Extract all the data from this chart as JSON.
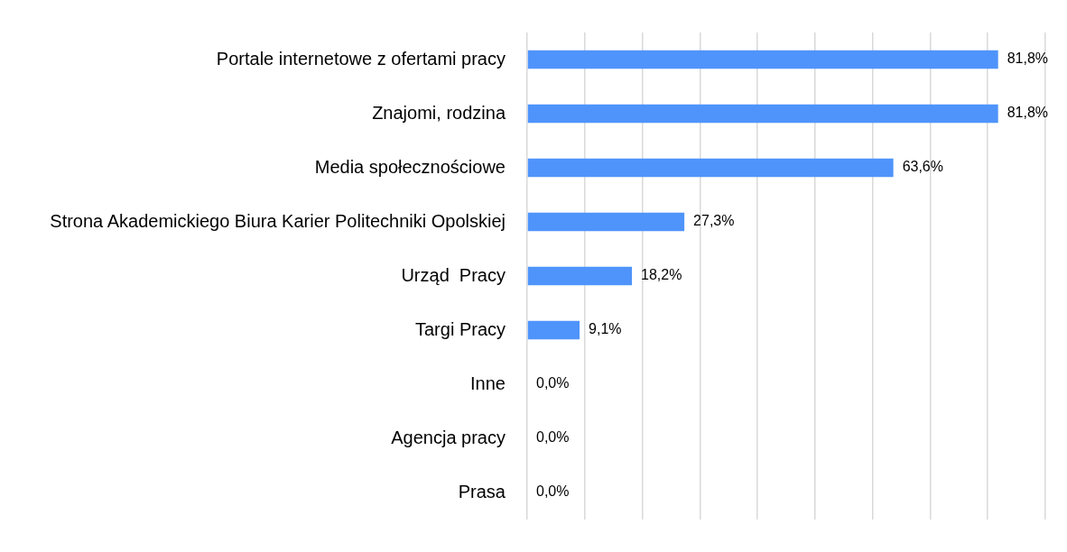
{
  "chart_data": {
    "type": "bar",
    "orientation": "horizontal",
    "categories": [
      "Portale internetowe z ofertami pracy",
      "Znajomi, rodzina",
      "Media społecznościowe",
      "Strona Akademickiego Biura Karier Politechniki Opolskiej",
      "Urząd  Pracy",
      "Targi Pracy",
      "Inne",
      "Agencja pracy",
      "Prasa"
    ],
    "values": [
      81.8,
      81.8,
      63.6,
      27.3,
      18.2,
      9.1,
      0,
      0,
      0
    ],
    "value_labels": [
      "81,8%",
      "81,8%",
      "63,6%",
      "27,3%",
      "18,2%",
      "9,1%",
      "0,0%",
      "0,0%",
      "0,0%"
    ],
    "color": "#4f94fb",
    "xlim": [
      0,
      90
    ],
    "xticks": [
      {
        "value": 0,
        "label": null
      },
      {
        "value": 10,
        "label": null
      },
      {
        "value": 20,
        "label": null
      },
      {
        "value": 30,
        "label": null
      },
      {
        "value": 40,
        "label": null
      },
      {
        "value": 50,
        "label": null
      },
      {
        "value": 60,
        "label": null
      },
      {
        "value": 70,
        "label": null
      },
      {
        "value": 80,
        "label": null
      },
      {
        "value": 90,
        "label": null
      }
    ],
    "grid": "x",
    "tick_labels": "y"
  }
}
